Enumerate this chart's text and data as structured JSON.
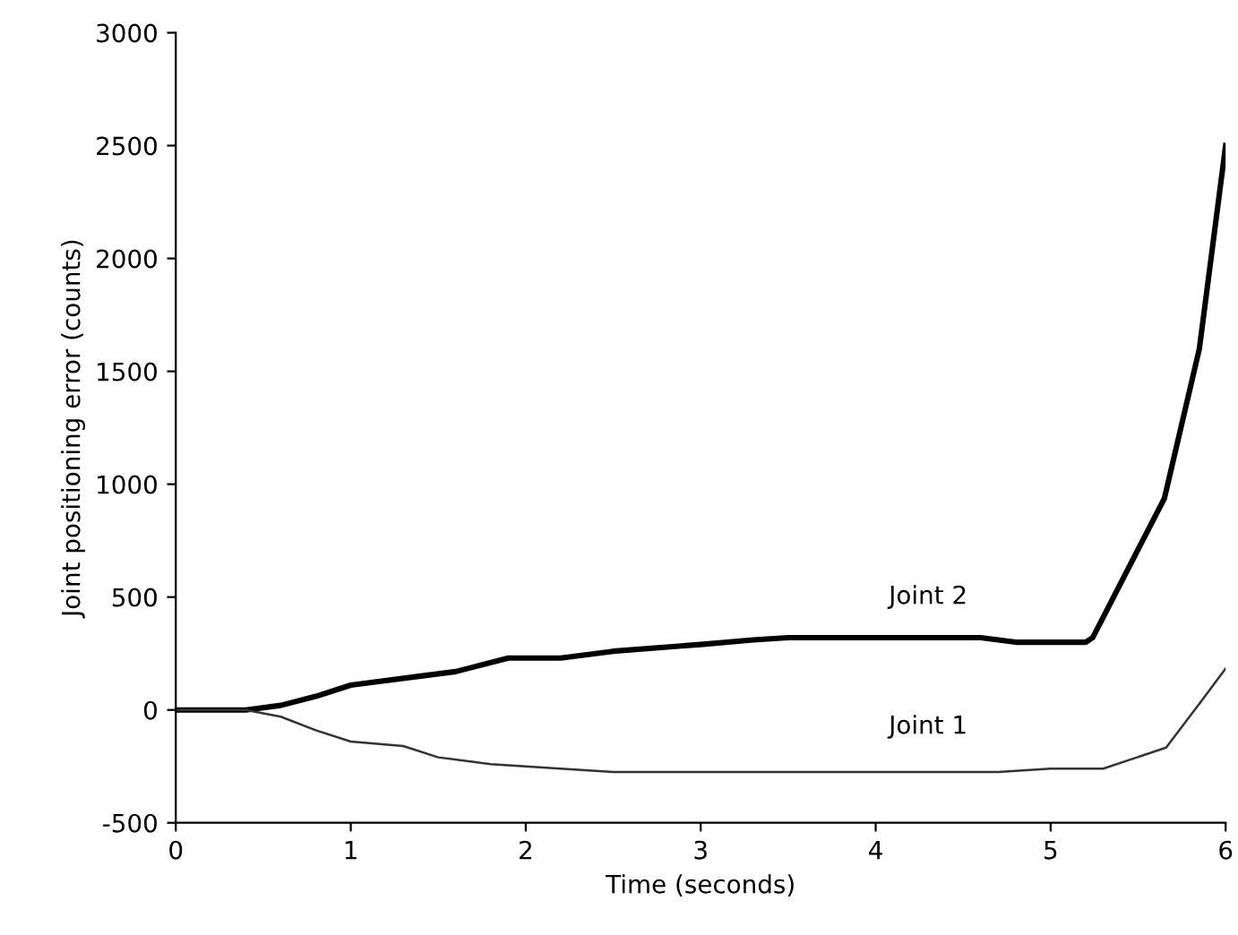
{
  "chart_data": {
    "type": "line",
    "xlabel": "Time (seconds)",
    "ylabel": "Joint positioning error (counts)",
    "xlim": [
      0,
      6
    ],
    "ylim": [
      -500,
      3000
    ],
    "xticks": [
      0,
      1,
      2,
      3,
      4,
      5,
      6
    ],
    "yticks": [
      -500,
      0,
      500,
      1000,
      1500,
      2000,
      2500,
      3000
    ],
    "grid": false,
    "legend": false,
    "series": [
      {
        "name": "Joint 2",
        "color": "#000000",
        "x": [
          0,
          0.4,
          0.6,
          0.8,
          1.0,
          1.4,
          1.6,
          1.9,
          2.2,
          2.5,
          3.0,
          3.3,
          3.5,
          4.0,
          4.6,
          4.8,
          5.2,
          5.24,
          5.65,
          5.85,
          6.0
        ],
        "values": [
          0,
          0,
          20,
          60,
          110,
          150,
          170,
          230,
          230,
          260,
          290,
          310,
          320,
          320,
          320,
          300,
          300,
          320,
          937,
          1600,
          2500
        ]
      },
      {
        "name": "Joint 1",
        "color": "#333333",
        "x": [
          0,
          0.4,
          0.6,
          0.8,
          1.0,
          1.3,
          1.5,
          1.8,
          2.2,
          2.5,
          3.0,
          4.0,
          4.7,
          5.0,
          5.3,
          5.66,
          5.85,
          6.0
        ],
        "values": [
          0,
          0,
          -30,
          -90,
          -140,
          -160,
          -210,
          -240,
          -260,
          -275,
          -275,
          -275,
          -275,
          -260,
          -260,
          -167,
          28,
          183
        ]
      }
    ]
  }
}
